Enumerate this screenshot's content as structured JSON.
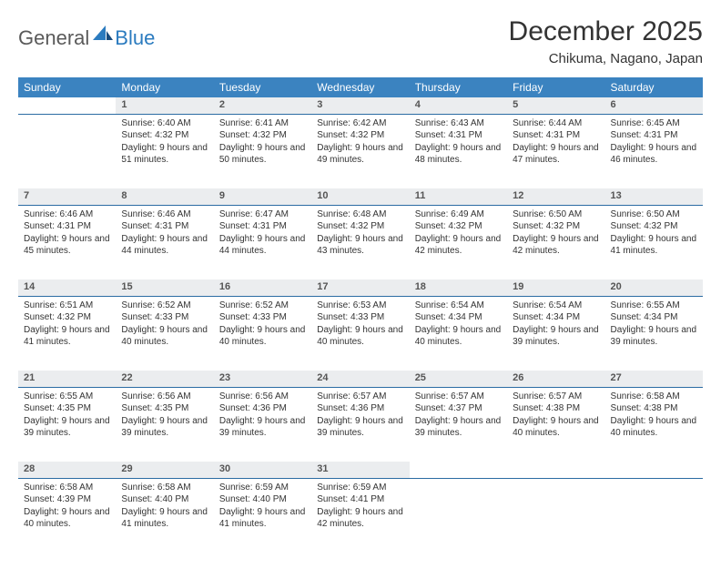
{
  "logo": {
    "general": "General",
    "blue": "Blue"
  },
  "title": "December 2025",
  "location": "Chikuma, Nagano, Japan",
  "colors": {
    "header_bg": "#3b83c0",
    "header_text": "#ffffff",
    "daynum_bg": "#ebedef",
    "daynum_border": "#2b6ca3",
    "logo_gray": "#5a5a5a",
    "logo_blue": "#2b7bbf"
  },
  "weekdays": [
    "Sunday",
    "Monday",
    "Tuesday",
    "Wednesday",
    "Thursday",
    "Friday",
    "Saturday"
  ],
  "weeks": [
    {
      "nums": [
        "",
        "1",
        "2",
        "3",
        "4",
        "5",
        "6"
      ],
      "cells": [
        null,
        {
          "sunrise": "Sunrise: 6:40 AM",
          "sunset": "Sunset: 4:32 PM",
          "daylight": "Daylight: 9 hours and 51 minutes."
        },
        {
          "sunrise": "Sunrise: 6:41 AM",
          "sunset": "Sunset: 4:32 PM",
          "daylight": "Daylight: 9 hours and 50 minutes."
        },
        {
          "sunrise": "Sunrise: 6:42 AM",
          "sunset": "Sunset: 4:32 PM",
          "daylight": "Daylight: 9 hours and 49 minutes."
        },
        {
          "sunrise": "Sunrise: 6:43 AM",
          "sunset": "Sunset: 4:31 PM",
          "daylight": "Daylight: 9 hours and 48 minutes."
        },
        {
          "sunrise": "Sunrise: 6:44 AM",
          "sunset": "Sunset: 4:31 PM",
          "daylight": "Daylight: 9 hours and 47 minutes."
        },
        {
          "sunrise": "Sunrise: 6:45 AM",
          "sunset": "Sunset: 4:31 PM",
          "daylight": "Daylight: 9 hours and 46 minutes."
        }
      ]
    },
    {
      "nums": [
        "7",
        "8",
        "9",
        "10",
        "11",
        "12",
        "13"
      ],
      "cells": [
        {
          "sunrise": "Sunrise: 6:46 AM",
          "sunset": "Sunset: 4:31 PM",
          "daylight": "Daylight: 9 hours and 45 minutes."
        },
        {
          "sunrise": "Sunrise: 6:46 AM",
          "sunset": "Sunset: 4:31 PM",
          "daylight": "Daylight: 9 hours and 44 minutes."
        },
        {
          "sunrise": "Sunrise: 6:47 AM",
          "sunset": "Sunset: 4:31 PM",
          "daylight": "Daylight: 9 hours and 44 minutes."
        },
        {
          "sunrise": "Sunrise: 6:48 AM",
          "sunset": "Sunset: 4:32 PM",
          "daylight": "Daylight: 9 hours and 43 minutes."
        },
        {
          "sunrise": "Sunrise: 6:49 AM",
          "sunset": "Sunset: 4:32 PM",
          "daylight": "Daylight: 9 hours and 42 minutes."
        },
        {
          "sunrise": "Sunrise: 6:50 AM",
          "sunset": "Sunset: 4:32 PM",
          "daylight": "Daylight: 9 hours and 42 minutes."
        },
        {
          "sunrise": "Sunrise: 6:50 AM",
          "sunset": "Sunset: 4:32 PM",
          "daylight": "Daylight: 9 hours and 41 minutes."
        }
      ]
    },
    {
      "nums": [
        "14",
        "15",
        "16",
        "17",
        "18",
        "19",
        "20"
      ],
      "cells": [
        {
          "sunrise": "Sunrise: 6:51 AM",
          "sunset": "Sunset: 4:32 PM",
          "daylight": "Daylight: 9 hours and 41 minutes."
        },
        {
          "sunrise": "Sunrise: 6:52 AM",
          "sunset": "Sunset: 4:33 PM",
          "daylight": "Daylight: 9 hours and 40 minutes."
        },
        {
          "sunrise": "Sunrise: 6:52 AM",
          "sunset": "Sunset: 4:33 PM",
          "daylight": "Daylight: 9 hours and 40 minutes."
        },
        {
          "sunrise": "Sunrise: 6:53 AM",
          "sunset": "Sunset: 4:33 PM",
          "daylight": "Daylight: 9 hours and 40 minutes."
        },
        {
          "sunrise": "Sunrise: 6:54 AM",
          "sunset": "Sunset: 4:34 PM",
          "daylight": "Daylight: 9 hours and 40 minutes."
        },
        {
          "sunrise": "Sunrise: 6:54 AM",
          "sunset": "Sunset: 4:34 PM",
          "daylight": "Daylight: 9 hours and 39 minutes."
        },
        {
          "sunrise": "Sunrise: 6:55 AM",
          "sunset": "Sunset: 4:34 PM",
          "daylight": "Daylight: 9 hours and 39 minutes."
        }
      ]
    },
    {
      "nums": [
        "21",
        "22",
        "23",
        "24",
        "25",
        "26",
        "27"
      ],
      "cells": [
        {
          "sunrise": "Sunrise: 6:55 AM",
          "sunset": "Sunset: 4:35 PM",
          "daylight": "Daylight: 9 hours and 39 minutes."
        },
        {
          "sunrise": "Sunrise: 6:56 AM",
          "sunset": "Sunset: 4:35 PM",
          "daylight": "Daylight: 9 hours and 39 minutes."
        },
        {
          "sunrise": "Sunrise: 6:56 AM",
          "sunset": "Sunset: 4:36 PM",
          "daylight": "Daylight: 9 hours and 39 minutes."
        },
        {
          "sunrise": "Sunrise: 6:57 AM",
          "sunset": "Sunset: 4:36 PM",
          "daylight": "Daylight: 9 hours and 39 minutes."
        },
        {
          "sunrise": "Sunrise: 6:57 AM",
          "sunset": "Sunset: 4:37 PM",
          "daylight": "Daylight: 9 hours and 39 minutes."
        },
        {
          "sunrise": "Sunrise: 6:57 AM",
          "sunset": "Sunset: 4:38 PM",
          "daylight": "Daylight: 9 hours and 40 minutes."
        },
        {
          "sunrise": "Sunrise: 6:58 AM",
          "sunset": "Sunset: 4:38 PM",
          "daylight": "Daylight: 9 hours and 40 minutes."
        }
      ]
    },
    {
      "nums": [
        "28",
        "29",
        "30",
        "31",
        "",
        "",
        ""
      ],
      "cells": [
        {
          "sunrise": "Sunrise: 6:58 AM",
          "sunset": "Sunset: 4:39 PM",
          "daylight": "Daylight: 9 hours and 40 minutes."
        },
        {
          "sunrise": "Sunrise: 6:58 AM",
          "sunset": "Sunset: 4:40 PM",
          "daylight": "Daylight: 9 hours and 41 minutes."
        },
        {
          "sunrise": "Sunrise: 6:59 AM",
          "sunset": "Sunset: 4:40 PM",
          "daylight": "Daylight: 9 hours and 41 minutes."
        },
        {
          "sunrise": "Sunrise: 6:59 AM",
          "sunset": "Sunset: 4:41 PM",
          "daylight": "Daylight: 9 hours and 42 minutes."
        },
        null,
        null,
        null
      ]
    }
  ]
}
